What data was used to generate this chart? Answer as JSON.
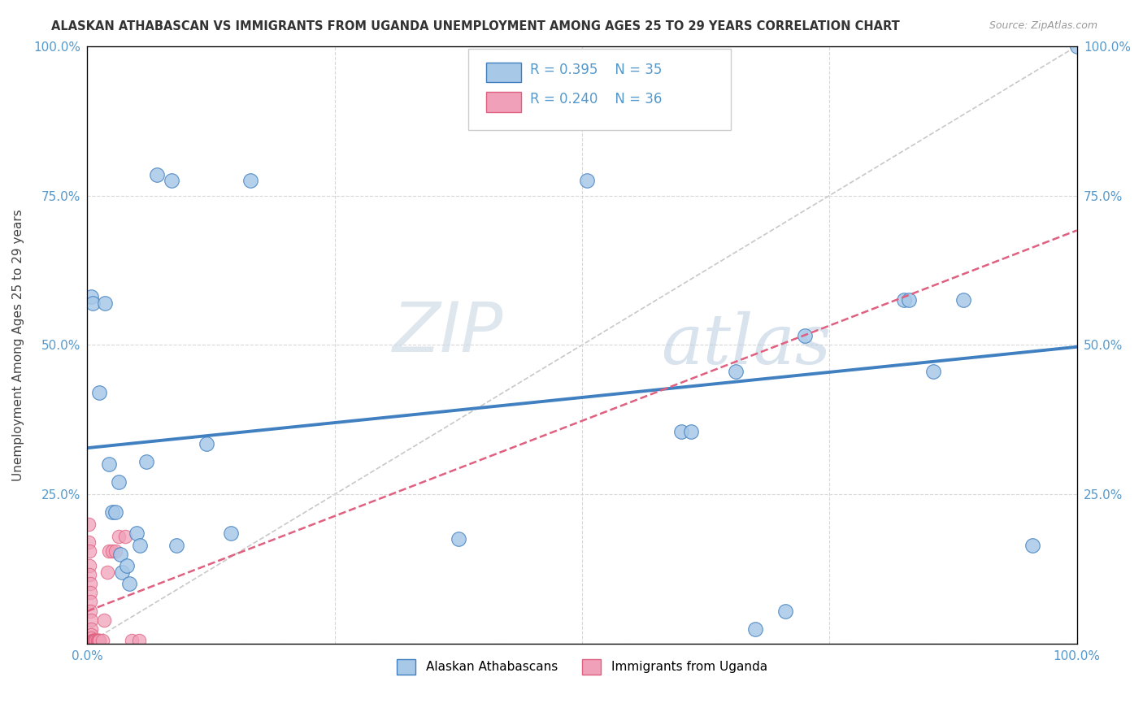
{
  "title": "ALASKAN ATHABASCAN VS IMMIGRANTS FROM UGANDA UNEMPLOYMENT AMONG AGES 25 TO 29 YEARS CORRELATION CHART",
  "source": "Source: ZipAtlas.com",
  "ylabel": "Unemployment Among Ages 25 to 29 years",
  "legend_label1": "Alaskan Athabascans",
  "legend_label2": "Immigrants from Uganda",
  "R1": "0.395",
  "N1": "35",
  "R2": "0.240",
  "N2": "36",
  "color_blue": "#a8c8e8",
  "color_pink": "#f0a0b8",
  "line_blue": "#4080c0",
  "line_pink": "#e06080",
  "line_dashed_color": "#c8c8c8",
  "watermark_zip": "ZIP",
  "watermark_atlas": "atlas",
  "blue_points": [
    [
      0.004,
      0.58
    ],
    [
      0.005,
      0.57
    ],
    [
      0.012,
      0.42
    ],
    [
      0.018,
      0.57
    ],
    [
      0.022,
      0.3
    ],
    [
      0.025,
      0.22
    ],
    [
      0.028,
      0.22
    ],
    [
      0.032,
      0.27
    ],
    [
      0.033,
      0.15
    ],
    [
      0.035,
      0.12
    ],
    [
      0.04,
      0.13
    ],
    [
      0.042,
      0.1
    ],
    [
      0.05,
      0.185
    ],
    [
      0.053,
      0.165
    ],
    [
      0.06,
      0.305
    ],
    [
      0.07,
      0.785
    ],
    [
      0.085,
      0.775
    ],
    [
      0.09,
      0.165
    ],
    [
      0.12,
      0.335
    ],
    [
      0.145,
      0.185
    ],
    [
      0.165,
      0.775
    ],
    [
      0.375,
      0.175
    ],
    [
      0.505,
      0.775
    ],
    [
      0.6,
      0.355
    ],
    [
      0.61,
      0.355
    ],
    [
      0.655,
      0.455
    ],
    [
      0.675,
      0.025
    ],
    [
      0.705,
      0.055
    ],
    [
      0.725,
      0.515
    ],
    [
      0.825,
      0.575
    ],
    [
      0.83,
      0.575
    ],
    [
      0.855,
      0.455
    ],
    [
      0.885,
      0.575
    ],
    [
      0.955,
      0.165
    ],
    [
      1.0,
      1.0
    ]
  ],
  "pink_points": [
    [
      0.001,
      0.2
    ],
    [
      0.001,
      0.17
    ],
    [
      0.002,
      0.155
    ],
    [
      0.002,
      0.13
    ],
    [
      0.002,
      0.115
    ],
    [
      0.003,
      0.1
    ],
    [
      0.003,
      0.085
    ],
    [
      0.003,
      0.07
    ],
    [
      0.003,
      0.055
    ],
    [
      0.004,
      0.04
    ],
    [
      0.004,
      0.025
    ],
    [
      0.004,
      0.015
    ],
    [
      0.004,
      0.01
    ],
    [
      0.005,
      0.005
    ],
    [
      0.005,
      0.005
    ],
    [
      0.006,
      0.005
    ],
    [
      0.006,
      0.005
    ],
    [
      0.007,
      0.005
    ],
    [
      0.007,
      0.005
    ],
    [
      0.008,
      0.005
    ],
    [
      0.009,
      0.005
    ],
    [
      0.01,
      0.005
    ],
    [
      0.01,
      0.005
    ],
    [
      0.011,
      0.005
    ],
    [
      0.012,
      0.005
    ],
    [
      0.012,
      0.005
    ],
    [
      0.015,
      0.005
    ],
    [
      0.017,
      0.04
    ],
    [
      0.02,
      0.12
    ],
    [
      0.022,
      0.155
    ],
    [
      0.025,
      0.155
    ],
    [
      0.028,
      0.155
    ],
    [
      0.032,
      0.18
    ],
    [
      0.038,
      0.18
    ],
    [
      0.045,
      0.005
    ],
    [
      0.052,
      0.005
    ]
  ],
  "xlim": [
    0,
    1.0
  ],
  "ylim": [
    0,
    1.0
  ],
  "xticks": [
    0.0,
    0.25,
    0.5,
    0.75,
    1.0
  ],
  "yticks": [
    0.0,
    0.25,
    0.5,
    0.75,
    1.0
  ],
  "background_color": "#ffffff",
  "grid_color": "#d8d8d8"
}
